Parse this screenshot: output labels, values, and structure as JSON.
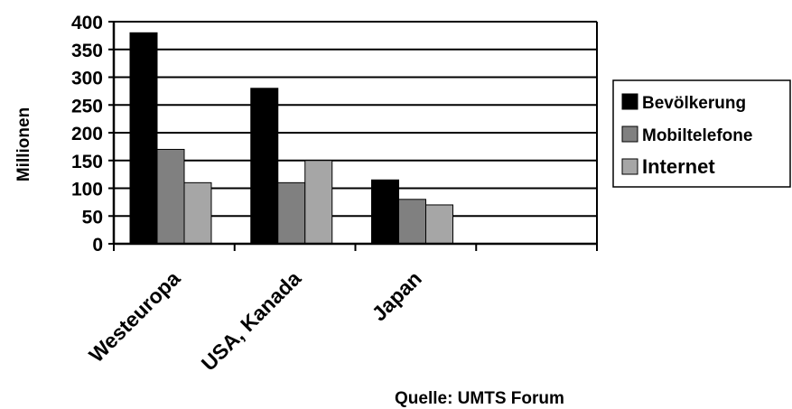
{
  "chart_data": {
    "type": "bar",
    "ylabel": "Millionen",
    "ylim": [
      0,
      400
    ],
    "yticks": [
      0,
      50,
      100,
      150,
      200,
      250,
      300,
      350,
      400
    ],
    "grid": true,
    "legend_position": "right",
    "categories": [
      "Westeuropa",
      "USA, Kanada",
      "Japan",
      ""
    ],
    "series": [
      {
        "name": "Bevölkerung",
        "color": "#000000",
        "values": [
          380,
          280,
          115,
          null
        ]
      },
      {
        "name": "Mobiltelefone",
        "color": "#808080",
        "values": [
          170,
          110,
          80,
          null
        ]
      },
      {
        "name": "Internet",
        "color": "#a6a6a6",
        "values": [
          110,
          150,
          70,
          null
        ]
      }
    ],
    "source": "Quelle: UMTS Forum"
  }
}
